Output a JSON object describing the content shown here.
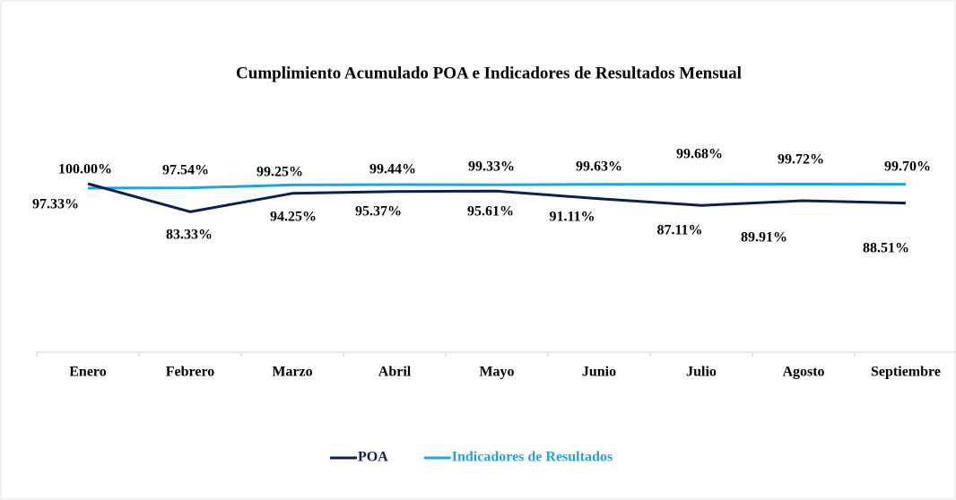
{
  "chart_data": {
    "type": "line",
    "title": "Cumplimiento Acumulado POA e Indicadores de Resultados Mensual",
    "categories": [
      "Enero",
      "Febrero",
      "Marzo",
      "Abril",
      "Mayo",
      "Junio",
      "Julio",
      "Agosto",
      "Septiembre"
    ],
    "series": [
      {
        "name": "POA",
        "color": "#0d1f4e",
        "values": [
          100.0,
          83.33,
          94.25,
          95.37,
          95.61,
          91.11,
          87.11,
          89.91,
          88.51
        ],
        "value_labels": [
          "100.00%",
          "83.33%",
          "94.25%",
          "95.37%",
          "95.61%",
          "91.11%",
          "87.11%",
          "89.91%",
          "88.51%"
        ]
      },
      {
        "name": "Indicadores de Resultados",
        "color": "#1ba6de",
        "values": [
          97.33,
          97.54,
          99.25,
          99.44,
          99.33,
          99.63,
          99.68,
          99.72,
          99.7
        ],
        "value_labels": [
          "97.33%",
          "97.54%",
          "99.25%",
          "99.44%",
          "99.33%",
          "99.63%",
          "99.68%",
          "99.72%",
          "99.70%"
        ]
      }
    ],
    "ylim": [
      0,
      100
    ]
  }
}
